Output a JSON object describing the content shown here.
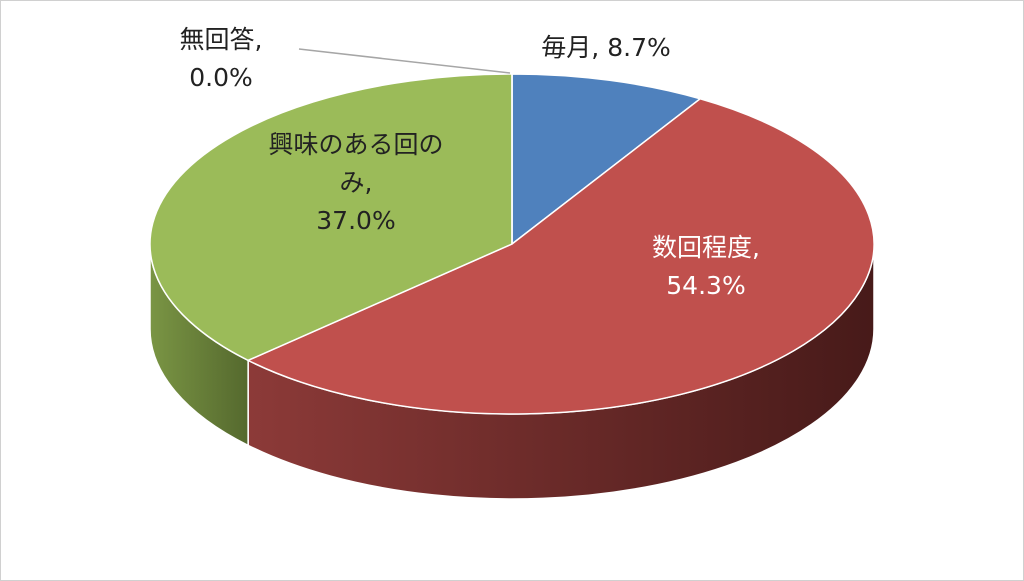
{
  "chart_data": {
    "type": "pie3d",
    "categories": [
      "毎月",
      "数回程度",
      "興味のある回のみ",
      "無回答"
    ],
    "values": [
      8.7,
      54.3,
      37.0,
      0.0
    ],
    "value_labels": [
      "8.7%",
      "54.3%",
      "37.0%",
      "0.0%"
    ],
    "label_separator": ",",
    "colors": [
      "#4f81bd",
      "#c0504d",
      "#9bbb59",
      "#8064a2"
    ],
    "side_colors": [
      [
        "#3a6190",
        "#22405f"
      ],
      [
        "#8c3a38",
        "#471a19"
      ],
      [
        "#7a9544",
        "#55692e"
      ],
      [
        "#5e4a78",
        "#3e3050"
      ]
    ]
  }
}
